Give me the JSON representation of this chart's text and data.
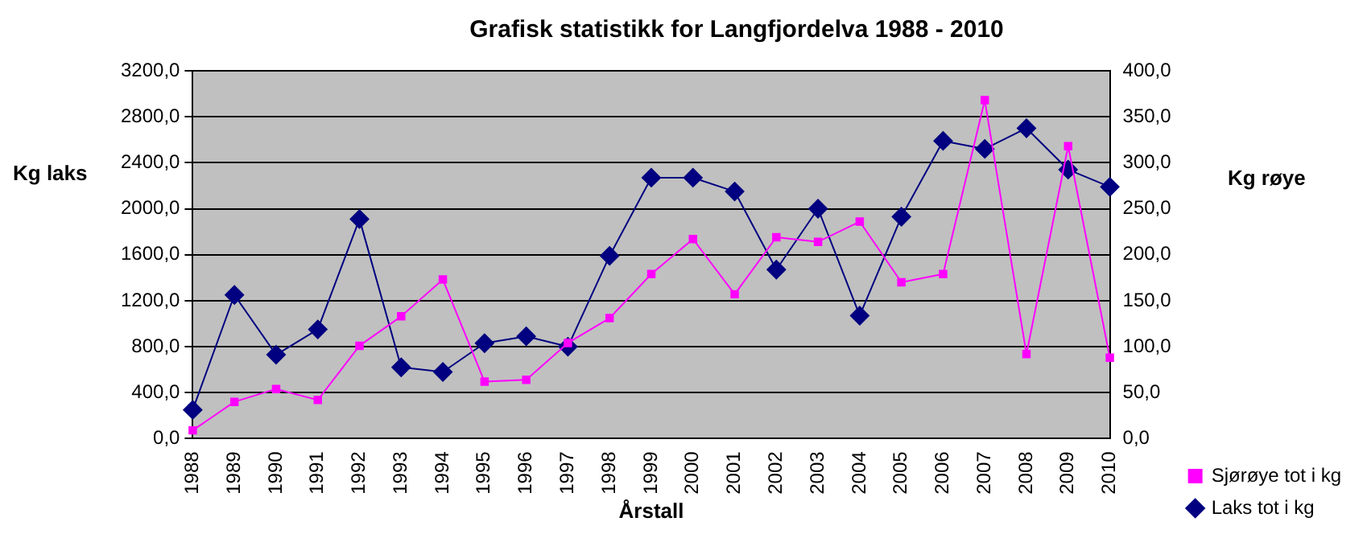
{
  "chart_data": {
    "type": "line",
    "title": "Grafisk statistikk for Langfjordelva 1988 - 2010",
    "xlabel": "Årstall",
    "ylabel": "Kg laks",
    "y2label": "Kg røye",
    "categories": [
      "1988",
      "1989",
      "1990",
      "1991",
      "1992",
      "1993",
      "1994",
      "1995",
      "1996",
      "1997",
      "1998",
      "1999",
      "2000",
      "2001",
      "2002",
      "2003",
      "2004",
      "2005",
      "2006",
      "2007",
      "2008",
      "2009",
      "2010"
    ],
    "series": [
      {
        "name": "Sjørøye tot i kg",
        "color": "#ff00ff",
        "axis": "y2",
        "marker": "square",
        "values": [
          9,
          40,
          54,
          42,
          101,
          133,
          173,
          62,
          64,
          104,
          131,
          179,
          217,
          157,
          219,
          214,
          236,
          170,
          179,
          368,
          92,
          318,
          88
        ]
      },
      {
        "name": "Laks tot i kg",
        "color": "#000080",
        "axis": "y",
        "marker": "diamond",
        "values": [
          250,
          1250,
          730,
          950,
          1910,
          620,
          580,
          830,
          890,
          800,
          1590,
          2270,
          2270,
          2150,
          1470,
          2000,
          1070,
          1930,
          2590,
          2520,
          2700,
          2340,
          2190
        ]
      }
    ],
    "ylim": [
      0,
      3200
    ],
    "yticks": [
      {
        "value": 0,
        "label": "0,0"
      },
      {
        "value": 400,
        "label": "400,0"
      },
      {
        "value": 800,
        "label": "800,0"
      },
      {
        "value": 1200,
        "label": "1200,0"
      },
      {
        "value": 1600,
        "label": "1600,0"
      },
      {
        "value": 2000,
        "label": "2000,0"
      },
      {
        "value": 2400,
        "label": "2400,0"
      },
      {
        "value": 2800,
        "label": "2800,0"
      },
      {
        "value": 3200,
        "label": "3200,0"
      }
    ],
    "y2lim": [
      0,
      400
    ],
    "y2ticks": [
      {
        "value": 0,
        "label": "0,0"
      },
      {
        "value": 50,
        "label": "50,0"
      },
      {
        "value": 100,
        "label": "100,0"
      },
      {
        "value": 150,
        "label": "150,0"
      },
      {
        "value": 200,
        "label": "200,0"
      },
      {
        "value": 250,
        "label": "250,0"
      },
      {
        "value": 300,
        "label": "300,0"
      },
      {
        "value": 350,
        "label": "350,0"
      },
      {
        "value": 400,
        "label": "400,0"
      }
    ],
    "grid": "y",
    "legend": "bottom right",
    "line_style": "solid"
  }
}
